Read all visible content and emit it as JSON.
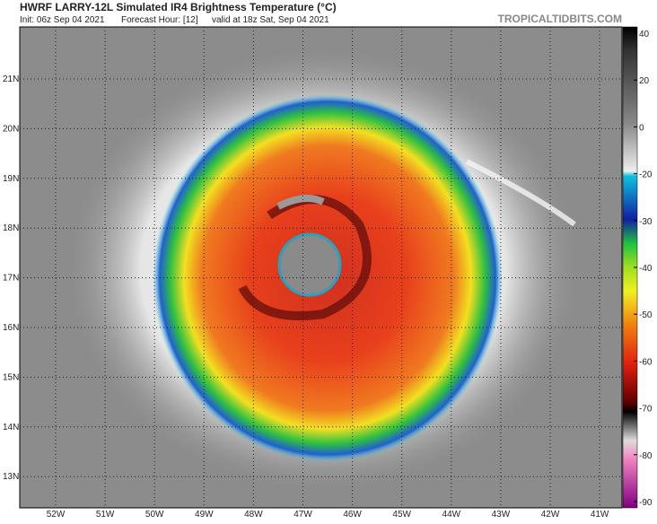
{
  "header": {
    "title": "HWRF LARRY-12L Simulated IR4 Brightness Temperature (°C)",
    "init": "Init: 06z Sep 04 2021",
    "forecast_hour": "Forecast Hour: [12]",
    "valid": "valid at 18z Sat, Sep 04 2021",
    "brand": "TROPICALTIDBITS.COM"
  },
  "map": {
    "lat_labels": [
      "21N",
      "20N",
      "19N",
      "18N",
      "17N",
      "16N",
      "15N",
      "14N",
      "13N"
    ],
    "lon_labels": [
      "52W",
      "51W",
      "50W",
      "49W",
      "48W",
      "47W",
      "46W",
      "45W",
      "44W",
      "43W",
      "42W",
      "41W"
    ]
  },
  "colorbar": {
    "ticks": [
      40,
      20,
      0,
      -20,
      -30,
      -40,
      -50,
      -60,
      -70,
      -80,
      -90
    ]
  }
}
